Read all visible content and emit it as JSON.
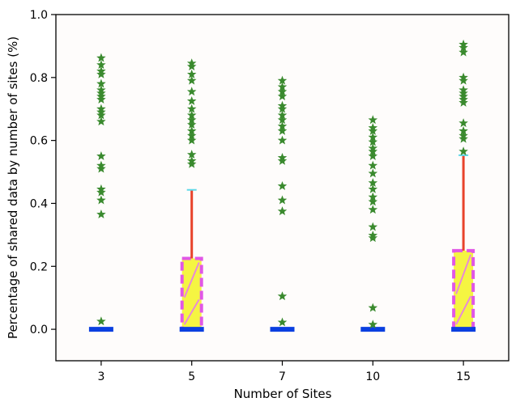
{
  "chart_data": {
    "type": "box",
    "title": "",
    "xlabel": "Number of Sites",
    "ylabel": "Percentage of shared data by number of sites (%)",
    "categories": [
      "3",
      "5",
      "7",
      "10",
      "15"
    ],
    "ylim": [
      -0.1,
      1.0
    ],
    "yticks": [
      0.0,
      0.2,
      0.4,
      0.6,
      0.8,
      1.0
    ],
    "ytick_labels": [
      "0.0",
      "0.2",
      "0.4",
      "0.6",
      "0.8",
      "1.0"
    ],
    "grid": false,
    "boxes": [
      {
        "category": "3",
        "min": 0.0,
        "q1": 0.0,
        "median": 0.0,
        "q3": 0.0,
        "max": 0.0,
        "outliers": [
          0.862,
          0.84,
          0.82,
          0.81,
          0.78,
          0.76,
          0.75,
          0.74,
          0.73,
          0.7,
          0.69,
          0.68,
          0.66,
          0.55,
          0.52,
          0.51,
          0.445,
          0.435,
          0.41,
          0.365,
          0.025
        ]
      },
      {
        "category": "5",
        "min": 0.0,
        "q1": 0.0,
        "median": 0.0,
        "q3": 0.225,
        "max": 0.443,
        "outliers": [
          0.845,
          0.835,
          0.81,
          0.79,
          0.755,
          0.725,
          0.7,
          0.68,
          0.665,
          0.65,
          0.63,
          0.615,
          0.6,
          0.555,
          0.535,
          0.525
        ]
      },
      {
        "category": "7",
        "min": 0.0,
        "q1": 0.0,
        "median": 0.0,
        "q3": 0.0,
        "max": 0.0,
        "outliers": [
          0.79,
          0.77,
          0.755,
          0.74,
          0.71,
          0.7,
          0.68,
          0.665,
          0.645,
          0.63,
          0.6,
          0.545,
          0.535,
          0.455,
          0.41,
          0.375,
          0.105,
          0.022
        ]
      },
      {
        "category": "10",
        "min": 0.0,
        "q1": 0.0,
        "median": 0.0,
        "q3": 0.0,
        "max": 0.0,
        "outliers": [
          0.665,
          0.64,
          0.63,
          0.61,
          0.595,
          0.575,
          0.565,
          0.55,
          0.52,
          0.495,
          0.465,
          0.445,
          0.42,
          0.405,
          0.38,
          0.325,
          0.298,
          0.29,
          0.068,
          0.015
        ]
      },
      {
        "category": "15",
        "min": 0.0,
        "q1": 0.0,
        "median": 0.0,
        "q3": 0.25,
        "max": 0.553,
        "outliers": [
          0.905,
          0.895,
          0.88,
          0.8,
          0.79,
          0.76,
          0.75,
          0.74,
          0.73,
          0.72,
          0.655,
          0.63,
          0.615,
          0.605,
          0.565
        ]
      }
    ],
    "colors": {
      "box_fill": "#f5f542",
      "box_edge": "#e157e6",
      "hatch": "#e88ad7",
      "median": "#0a3fe0",
      "whisker": "#e8432b",
      "cap": "#60d8e8",
      "outlier": "#3a8a2e",
      "axis": "#000000",
      "background": "#fefcfb"
    },
    "outlier_marker": "star"
  }
}
